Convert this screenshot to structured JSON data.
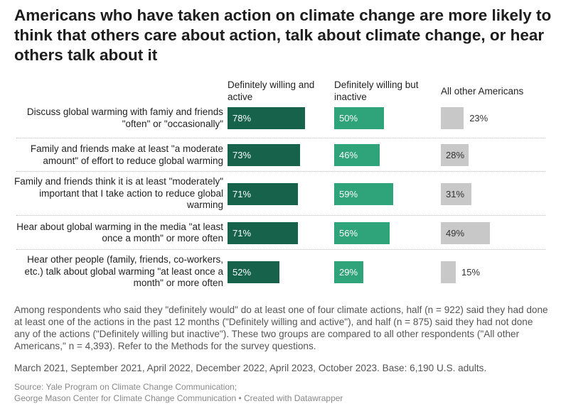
{
  "title": "Americans who have taken action on climate change are more likely to think that others care about action, talk about climate change, or hear others talk about it",
  "chart_data": {
    "type": "bar",
    "title": "Americans who have taken action on climate change are more likely to think that others care about action, talk about climate change, or hear others talk about it",
    "categories": [
      "Discuss global warming with famiy and friends \"often\" or \"occasionally\"",
      "Family and friends make at least \"a moderate amount\" of effort to reduce global warming",
      "Family and friends think it is at least \"moderately\" important that I take action to reduce global warming",
      "Hear about global warming in the media \"at least once a month\" or more often",
      "Hear other people (family, friends, co-workers, etc.) talk about global warming \"at least once a month\" or more often"
    ],
    "series": [
      {
        "name": "Definitely willing and active",
        "values": [
          78,
          73,
          71,
          71,
          52
        ],
        "color": "#17624a",
        "labels": [
          "78%",
          "73%",
          "71%",
          "71%",
          "52%"
        ]
      },
      {
        "name": "Definitely willing but inactive",
        "values": [
          50,
          46,
          59,
          56,
          29
        ],
        "color": "#2fa37a",
        "labels": [
          "50%",
          "46%",
          "59%",
          "56%",
          "29%"
        ]
      },
      {
        "name": "All other Americans",
        "values": [
          23,
          28,
          31,
          49,
          15
        ],
        "color": "#c8c8c8",
        "labels": [
          "23%",
          "28%",
          "31%",
          "49%",
          "15%"
        ]
      }
    ],
    "unit": "%",
    "xlim": [
      0,
      100
    ]
  },
  "notes": "Among respondents who said they \"definitely would\" do at least one of four climate actions, half (n = 922) said they had done at least one of the actions in the past 12 months (\"Definitely willing and active\"), and half (n = 875) said they had not done any of the actions (\"Definitely willing but inactive\"). These two groups are compared to all other respondents (\"All other Americans,\" n = 4,393). Refer to the Methods for the survey questions.",
  "dates": "March 2021, September 2021, April 2022, December 2022, April 2023, October 2023. Base: 6,190 U.S. adults.",
  "source_line1": "Source: Yale Program on Climate Change Communication;",
  "source_line2": "George Mason Center for Climate Change Communication • Created with Datawrapper"
}
